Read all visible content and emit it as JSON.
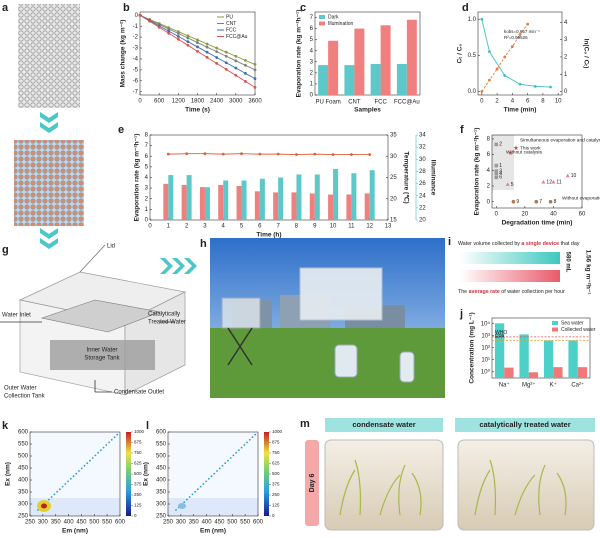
{
  "chart_data": [
    {
      "panel": "b",
      "type": "line",
      "xlabel": "Time (s)",
      "ylabel": "Mass change (kg m⁻²)",
      "x": [
        0,
        300,
        600,
        900,
        1200,
        1500,
        1800,
        2100,
        2400,
        2700,
        3000,
        3300,
        3600
      ],
      "xlim": [
        0,
        3600
      ],
      "xticks": [
        0,
        600,
        1200,
        1800,
        2400,
        3000,
        3600
      ],
      "ylim": [
        -7.3,
        0.3
      ],
      "yticks": [
        0,
        -1,
        -2,
        -3,
        -4,
        -5,
        -6,
        -7
      ],
      "legend": "upper right",
      "series": [
        {
          "name": "PU",
          "color": "#8a9a3a",
          "marker": "circle",
          "values": [
            0,
            -0.38,
            -0.75,
            -1.13,
            -1.5,
            -1.88,
            -2.25,
            -2.63,
            -3,
            -3.38,
            -3.75,
            -4.13,
            -4.5
          ]
        },
        {
          "name": "CNT",
          "color": "#7f7f7f",
          "marker": "circle",
          "values": [
            0,
            -0.42,
            -0.83,
            -1.25,
            -1.67,
            -2.08,
            -2.5,
            -2.92,
            -3.33,
            -3.75,
            -4.17,
            -4.58,
            -5
          ]
        },
        {
          "name": "FCC",
          "color": "#3a6fb0",
          "marker": "circle",
          "values": [
            0,
            -0.48,
            -0.97,
            -1.45,
            -1.93,
            -2.42,
            -2.9,
            -3.38,
            -3.87,
            -4.35,
            -4.83,
            -5.32,
            -5.8
          ]
        },
        {
          "name": "FCC@Au",
          "color": "#d9534f",
          "marker": "circle",
          "values": [
            0,
            -0.55,
            -1.1,
            -1.65,
            -2.2,
            -2.75,
            -3.3,
            -3.85,
            -4.4,
            -4.95,
            -5.5,
            -6.05,
            -6.6
          ]
        }
      ]
    },
    {
      "panel": "c",
      "type": "bar",
      "xlabel": "Samples",
      "ylabel": "Evaporation rate (kg m⁻²h⁻¹)",
      "categories": [
        "PU Foam",
        "CNT",
        "FCC",
        "FCC@Au"
      ],
      "ylim": [
        0,
        7.5
      ],
      "yticks": [
        0,
        1,
        2,
        3,
        4,
        5,
        6,
        7
      ],
      "legend": "upper left",
      "series": [
        {
          "name": "Dark",
          "color": "#5cc8c8",
          "values": [
            2.7,
            2.7,
            2.8,
            2.8
          ]
        },
        {
          "name": "Illumination",
          "color": "#f08080",
          "values": [
            4.9,
            6.0,
            6.3,
            6.8
          ]
        }
      ]
    },
    {
      "panel": "d",
      "type": "line",
      "xlabel": "Time (min)",
      "ylabel": "Cₜ / C₀",
      "y2label": "ln(C₀ / Cₜ)",
      "xlim": [
        -0.5,
        10.5
      ],
      "xticks": [
        0,
        2,
        4,
        6,
        8,
        10
      ],
      "ylim": [
        -0.05,
        1.1
      ],
      "yticks": [
        {
          "value": 0,
          "label": "0.0"
        },
        0.5,
        {
          "value": 1,
          "label": "1.0"
        }
      ],
      "y2lim": [
        -0.2,
        4.6
      ],
      "y2ticks": [
        0,
        1,
        2,
        3,
        4
      ],
      "annotations": [
        "kobs=0.657 min⁻¹",
        "R²=0.99526"
      ],
      "series": [
        {
          "color": "#40c0c8",
          "marker": "circle",
          "x": [
            0,
            1,
            3,
            5,
            7,
            9
          ],
          "values": [
            1,
            0.55,
            0.22,
            0.1,
            0.07,
            0.06
          ]
        },
        {
          "color": "#e08040",
          "marker": "circle",
          "style": "dashed",
          "axis": "y2",
          "x": [
            0,
            1,
            2,
            3,
            4,
            5,
            6
          ],
          "values": [
            0,
            0.66,
            1.3,
            2.0,
            2.6,
            3.3,
            3.9
          ]
        }
      ]
    },
    {
      "panel": "e",
      "type": "bar",
      "xlabel": "Time (h)",
      "ylabel": "Evaporation rate (kg m⁻²h⁻¹)",
      "y2label": "Temperature (℃)",
      "y3label": "Illuminance",
      "x": [
        1,
        2,
        3,
        4,
        5,
        6,
        7,
        8,
        9,
        10,
        11,
        12
      ],
      "xlim": [
        0,
        13
      ],
      "xticks": [
        0,
        1,
        2,
        3,
        4,
        5,
        6,
        7,
        8,
        9,
        10,
        11,
        12,
        13
      ],
      "ylim": [
        0,
        8
      ],
      "yticks": [
        0,
        1,
        2,
        3,
        4,
        5,
        6,
        7,
        8
      ],
      "y2lim": [
        15,
        35
      ],
      "y2ticks": [
        15,
        20,
        25,
        30,
        35
      ],
      "y3lim": [
        20,
        34
      ],
      "y3ticks": [
        20,
        22,
        24,
        26,
        28,
        30,
        32,
        34
      ],
      "series": [
        {
          "color": "#f08080",
          "values": [
            3.4,
            3.3,
            3.1,
            3.3,
            3.2,
            2.7,
            2.6,
            2.6,
            2.5,
            2.4,
            2.4,
            2.5
          ]
        },
        {
          "color": "#5cc8c8",
          "axis": "y3",
          "values": [
            27.4,
            27.4,
            25.4,
            26.5,
            26.5,
            26.8,
            27.0,
            27.5,
            27.5,
            28.4,
            27.7,
            28.2
          ]
        },
        {
          "color": "#e0603a",
          "mark": "line",
          "marker": "circle",
          "axis": "y2",
          "values": [
            30.5,
            30.6,
            30.6,
            30.5,
            30.6,
            30.5,
            30.5,
            30.4,
            30.5,
            30.4,
            30.4,
            30.4
          ]
        }
      ]
    },
    {
      "panel": "f",
      "type": "scatter",
      "xlabel": "Degradation time (min)",
      "ylabel": "Evaporation rate (kg m⁻²h⁻¹)",
      "xlim": [
        -3,
        60
      ],
      "xticks": [
        0,
        20,
        40,
        60
      ],
      "ylim": [
        -0.8,
        8.5
      ],
      "yticks": [
        0,
        2,
        4,
        6,
        8
      ],
      "series": [
        {
          "name": "Without catalysis",
          "color": "#9a9a9a",
          "marker": "square",
          "x": [
            0,
            0,
            0,
            0,
            0
          ],
          "values": [
            7.3,
            4.6,
            3.9,
            3.6,
            3.1
          ],
          "point_labels": [
            "2",
            "1",
            "3",
            "4",
            "6"
          ]
        },
        {
          "name": "Simultaneous evaporation and catalysis",
          "color": "#e57f9b",
          "marker": "triangle",
          "x": [
            8,
            33,
            40,
            50
          ],
          "values": [
            2.2,
            2.5,
            2.5,
            3.3
          ],
          "point_labels": [
            "5",
            "12",
            "11",
            "10"
          ]
        },
        {
          "name": "Without evaporation",
          "color": "#b07a50",
          "marker": "circle",
          "x": [
            12,
            28,
            38
          ],
          "values": [
            0,
            0,
            0
          ],
          "point_labels": [
            "9",
            "7",
            "8"
          ]
        },
        {
          "name": "This work",
          "color": "#d03030",
          "marker": "star",
          "x": [
            10
          ],
          "values": [
            6.2
          ]
        }
      ]
    },
    {
      "panel": "j",
      "type": "bar",
      "ylabel": "Concentration (mg L⁻¹)",
      "log_y": true,
      "categories": [
        "Na⁺",
        "Mg²⁺",
        "K⁺",
        "Ca²⁺"
      ],
      "ylim": [
        0.3,
        30000
      ],
      "yticks": [
        {
          "value": 1,
          "label": "10⁰"
        },
        {
          "value": 10,
          "label": "10¹"
        },
        {
          "value": 100,
          "label": "10²"
        },
        {
          "value": 1000,
          "label": "10³"
        },
        {
          "value": 10000,
          "label": "10⁴"
        }
      ],
      "legend": "upper right",
      "reference_lines": [
        {
          "name": "WHO",
          "value": 800,
          "color": "#e05050"
        },
        {
          "name": "EPA",
          "value": 400,
          "color": "#e0a030"
        }
      ],
      "series": [
        {
          "name": "Sea water",
          "color": "#4dd0c8",
          "values": [
            10800,
            1290,
            400,
            410
          ]
        },
        {
          "name": "Collected water",
          "color": "#f07878",
          "values": [
            2.2,
            0.9,
            2.4,
            2.4
          ]
        }
      ]
    },
    {
      "panel": "k",
      "type": "contour",
      "xlabel": "Em (nm)",
      "ylabel": "Ex (nm)",
      "xlim": [
        250,
        600
      ],
      "xticks": [
        250,
        300,
        350,
        400,
        450,
        500,
        550,
        600
      ],
      "ylim": [
        250,
        600
      ],
      "yticks": [
        250,
        300,
        350,
        400,
        450,
        500,
        550,
        600
      ],
      "colorbar_lim": [
        0,
        1000
      ],
      "colorbar_ticks": [
        0,
        125,
        250,
        375,
        500,
        625,
        750,
        875,
        1000
      ]
    },
    {
      "panel": "l",
      "type": "contour",
      "xlabel": "Em (nm)",
      "ylabel": "Ex (nm)",
      "xlim": [
        250,
        600
      ],
      "xticks": [
        250,
        300,
        350,
        400,
        450,
        500,
        550,
        600
      ],
      "ylim": [
        250,
        600
      ],
      "yticks": [
        250,
        300,
        350,
        400,
        450,
        500,
        550,
        600
      ],
      "colorbar_lim": [
        0,
        1000
      ],
      "colorbar_ticks": [
        0,
        125,
        250,
        375,
        500,
        625,
        750,
        875,
        1000
      ]
    }
  ],
  "panel_a": {
    "label": "a"
  },
  "panel_g": {
    "label": "g",
    "lid": "Lid",
    "inlet": "Water Inlet",
    "treated": [
      "Catalytically",
      "Treated Water"
    ],
    "inner": [
      "Inner Water",
      "Storage Tank"
    ],
    "outer": [
      "Outer Water",
      "Collection Tank"
    ],
    "outlet": "Condensate Outlet"
  },
  "panel_h": {
    "label": "h"
  },
  "panel_i": {
    "label": "i",
    "line1": [
      "Water volume collected by ",
      "a single device",
      " that day"
    ],
    "volume": "580 mL",
    "rate": "1.56 kg m⁻²h⁻¹",
    "line2": [
      "The ",
      "average rate",
      " of water collection per hour"
    ]
  },
  "panel_m": {
    "label": "m",
    "headers": [
      "condensate water",
      "catalytically treated water"
    ],
    "day": "Day 6"
  }
}
